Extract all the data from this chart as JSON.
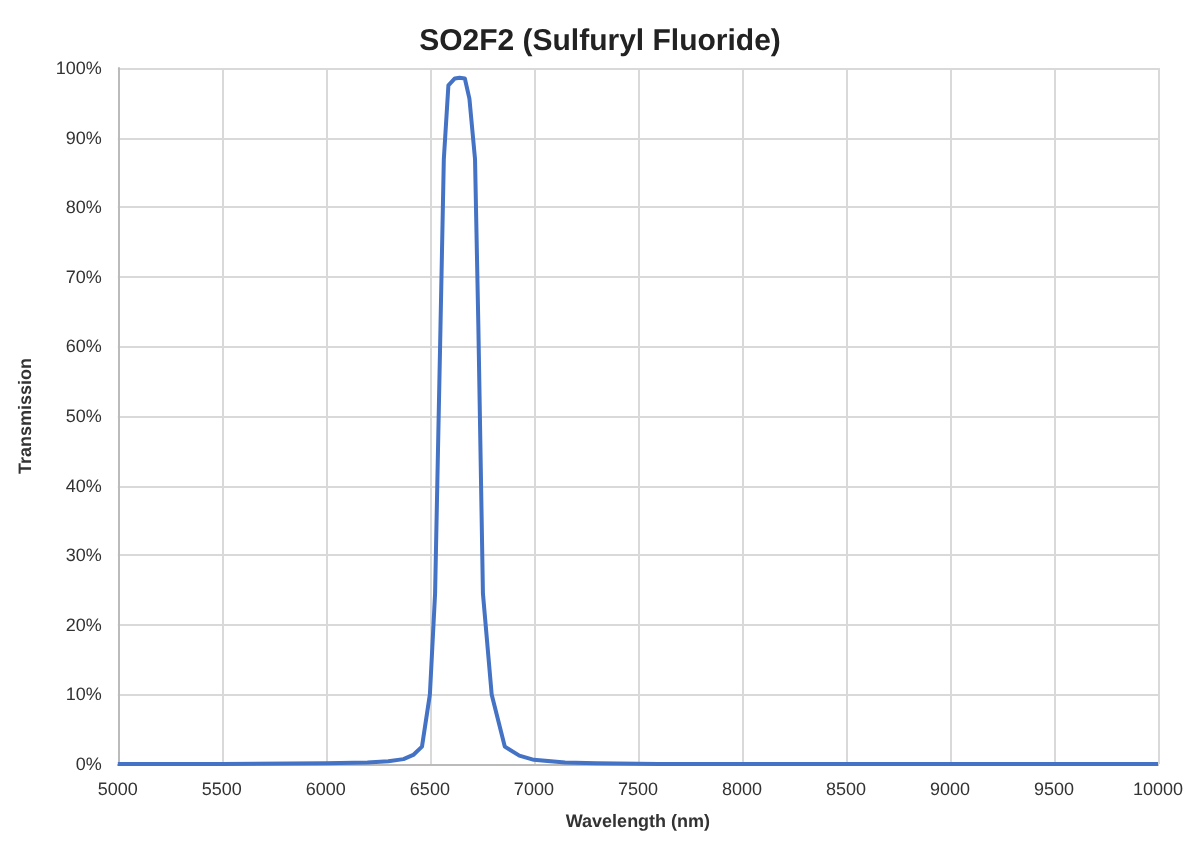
{
  "chart_data": {
    "type": "line",
    "title": "SO2F2 (Sulfuryl Fluoride)",
    "xlabel": "Wavelength (nm)",
    "ylabel": "Transmission",
    "x": [
      5000,
      5500,
      6000,
      6200,
      6300,
      6373,
      6420,
      6462,
      6500,
      6525,
      6551,
      6567,
      6589,
      6620,
      6643,
      6668,
      6690,
      6717,
      6733,
      6755,
      6797,
      6860,
      6930,
      7000,
      7150,
      7300,
      7600,
      8000,
      9000,
      10000
    ],
    "series": [
      {
        "color": "#4472c4",
        "values": [
          0,
          0,
          0.1,
          0.2,
          0.4,
          0.7,
          1.3,
          2.5,
          10,
          24.5,
          62.9,
          86.9,
          97.5,
          98.5,
          98.6,
          98.5,
          95.6,
          86.9,
          62.9,
          24.5,
          10,
          2.5,
          1.2,
          0.6,
          0.2,
          0.1,
          0,
          0,
          0,
          0
        ]
      }
    ],
    "xlim": [
      5000,
      10000
    ],
    "xticks": [
      5000,
      5500,
      6000,
      6500,
      7000,
      7500,
      8000,
      8500,
      9000,
      9500,
      10000
    ],
    "ylim": [
      0,
      100
    ],
    "yticks": [
      {
        "value": 0,
        "label": "0%"
      },
      {
        "value": 10,
        "label": "10%"
      },
      {
        "value": 20,
        "label": "20%"
      },
      {
        "value": 30,
        "label": "30%"
      },
      {
        "value": 40,
        "label": "40%"
      },
      {
        "value": 50,
        "label": "50%"
      },
      {
        "value": 60,
        "label": "60%"
      },
      {
        "value": 70,
        "label": "70%"
      },
      {
        "value": 80,
        "label": "80%"
      },
      {
        "value": 90,
        "label": "90%"
      },
      {
        "value": 100,
        "label": "100%"
      }
    ],
    "grid": true,
    "marker": "none",
    "line_style": "solid"
  }
}
